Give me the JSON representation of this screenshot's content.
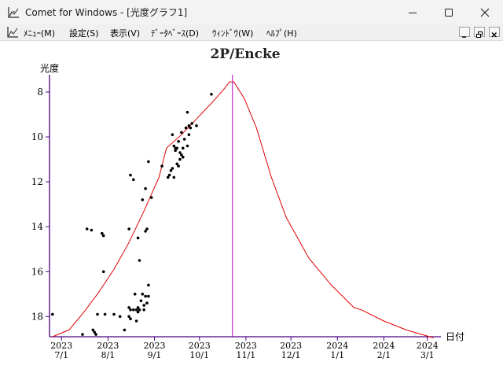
{
  "window": {
    "title": "Comet for Windows - [光度グラフ1]"
  },
  "menu": {
    "items": [
      "ﾒﾆｭｰ(M)",
      "設定(S)",
      "表示(V)",
      "ﾃﾞｰﾀﾍﾞｰｽ(D)",
      "ｳｨﾝﾄﾞｳ(W)",
      "ﾍﾙﾌﾟ(H)"
    ]
  },
  "icons": {
    "app": "chart-icon",
    "minimize": "minimize-icon",
    "maximize": "maximize-icon",
    "close": "close-icon",
    "mdi_minimize": "mdi-minimize-icon",
    "mdi_restore": "mdi-restore-icon",
    "mdi_close": "mdi-close-icon"
  },
  "colors": {
    "curve": "#e00000",
    "marker": "#c000c0",
    "axis": "#4b0082",
    "points": "#000000"
  },
  "chart_data": {
    "type": "scatter",
    "title": "2P/Encke",
    "ylabel": "光度",
    "xlabel": "日付",
    "y_inverted": true,
    "ylim": [
      18.9,
      7.3
    ],
    "y_ticks": [
      8,
      10,
      12,
      14,
      16,
      18
    ],
    "x_range_days": [
      -8,
      252
    ],
    "x_ticks": [
      {
        "day": 0,
        "year": "2023",
        "date": "7/1"
      },
      {
        "day": 31,
        "year": "2023",
        "date": "8/1"
      },
      {
        "day": 62,
        "year": "2023",
        "date": "9/1"
      },
      {
        "day": 92,
        "year": "2023",
        "date": "10/1"
      },
      {
        "day": 123,
        "year": "2023",
        "date": "11/1"
      },
      {
        "day": 153,
        "year": "2023",
        "date": "12/1"
      },
      {
        "day": 184,
        "year": "2024",
        "date": "1/1"
      },
      {
        "day": 215,
        "year": "2024",
        "date": "2/1"
      },
      {
        "day": 244,
        "year": "2024",
        "date": "3/1"
      }
    ],
    "perihelion_day": 114,
    "prediction": {
      "name": "predicted",
      "points": [
        [
          -6,
          18.9
        ],
        [
          5,
          18.6
        ],
        [
          15,
          17.8
        ],
        [
          25,
          16.9
        ],
        [
          35,
          15.9
        ],
        [
          45,
          14.7
        ],
        [
          55,
          13.3
        ],
        [
          65,
          11.8
        ],
        [
          70,
          10.5
        ],
        [
          80,
          9.9
        ],
        [
          90,
          9.2
        ],
        [
          100,
          8.5
        ],
        [
          108,
          7.9
        ],
        [
          112,
          7.55
        ],
        [
          115,
          7.55
        ],
        [
          122,
          8.3
        ],
        [
          130,
          9.6
        ],
        [
          140,
          11.8
        ],
        [
          150,
          13.6
        ],
        [
          165,
          15.4
        ],
        [
          180,
          16.6
        ],
        [
          195,
          17.6
        ],
        [
          200,
          17.7
        ],
        [
          215,
          18.2
        ],
        [
          230,
          18.6
        ],
        [
          248,
          18.95
        ]
      ]
    },
    "observations": {
      "name": "observations",
      "points": [
        [
          -6,
          17.9
        ],
        [
          14,
          18.8
        ],
        [
          17,
          14.1
        ],
        [
          20,
          14.15
        ],
        [
          21,
          18.6
        ],
        [
          22,
          18.7
        ],
        [
          23,
          18.8
        ],
        [
          24,
          17.9
        ],
        [
          27,
          14.3
        ],
        [
          28,
          14.4
        ],
        [
          28,
          16.0
        ],
        [
          29,
          17.9
        ],
        [
          35,
          17.9
        ],
        [
          39,
          18.0
        ],
        [
          42,
          18.6
        ],
        [
          45,
          14.1
        ],
        [
          45,
          17.6
        ],
        [
          45,
          18.0
        ],
        [
          46,
          17.7
        ],
        [
          46,
          18.1
        ],
        [
          46,
          11.7
        ],
        [
          48,
          11.9
        ],
        [
          48,
          17.7
        ],
        [
          49,
          17.0
        ],
        [
          50,
          17.7
        ],
        [
          50,
          18.2
        ],
        [
          51,
          17.8
        ],
        [
          51,
          17.6
        ],
        [
          51,
          14.5
        ],
        [
          52,
          15.5
        ],
        [
          52,
          17.7
        ],
        [
          53,
          17.3
        ],
        [
          54,
          17.0
        ],
        [
          54,
          12.8
        ],
        [
          55,
          17.5
        ],
        [
          55,
          17.7
        ],
        [
          56,
          17.1
        ],
        [
          56,
          14.2
        ],
        [
          56,
          12.3
        ],
        [
          57,
          17.4
        ],
        [
          57,
          14.1
        ],
        [
          58,
          17.1
        ],
        [
          58,
          16.6
        ],
        [
          58,
          11.1
        ],
        [
          60,
          12.7
        ],
        [
          67,
          11.3
        ],
        [
          71,
          11.8
        ],
        [
          72,
          11.7
        ],
        [
          73,
          11.5
        ],
        [
          74,
          11.4
        ],
        [
          74,
          9.9
        ],
        [
          75,
          10.4
        ],
        [
          75,
          11.8
        ],
        [
          76,
          10.5
        ],
        [
          76,
          10.6
        ],
        [
          77,
          11.2
        ],
        [
          77,
          10.5
        ],
        [
          78,
          11.3
        ],
        [
          78,
          10.2
        ],
        [
          79,
          10.7
        ],
        [
          79,
          11.0
        ],
        [
          80,
          9.8
        ],
        [
          80,
          10.8
        ],
        [
          81,
          10.9
        ],
        [
          81,
          10.5
        ],
        [
          82,
          10.1
        ],
        [
          83,
          9.6
        ],
        [
          84,
          8.9
        ],
        [
          84,
          10.4
        ],
        [
          85,
          9.5
        ],
        [
          85,
          9.9
        ],
        [
          86,
          9.6
        ],
        [
          87,
          9.4
        ],
        [
          90,
          9.5
        ],
        [
          100,
          8.1
        ]
      ]
    }
  }
}
